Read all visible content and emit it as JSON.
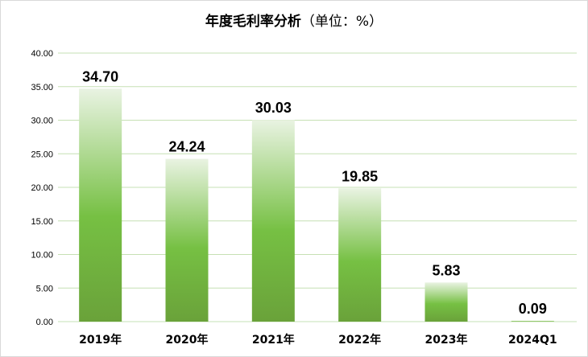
{
  "chart_data": {
    "type": "bar",
    "title": "年度毛利率分析",
    "subtitle": "（单位：%）",
    "categories": [
      "2019年",
      "2020年",
      "2021年",
      "2022年",
      "2023年",
      "2024Q1"
    ],
    "values": [
      34.7,
      24.24,
      30.03,
      19.85,
      5.83,
      0.09
    ],
    "data_labels": [
      "34.70",
      "24.24",
      "30.03",
      "19.85",
      "5.83",
      "0.09"
    ],
    "ylim": [
      0,
      40
    ],
    "yticks": [
      "0.00",
      "5.00",
      "10.00",
      "15.00",
      "20.00",
      "25.00",
      "30.00",
      "35.00",
      "40.00"
    ],
    "grid": true,
    "legend": "none",
    "colors": {
      "bar_top": "#e9f3e2",
      "bar_mid": "#76c043",
      "bar_bottom": "#6aa23a",
      "grid": "#c6e0b4"
    }
  }
}
